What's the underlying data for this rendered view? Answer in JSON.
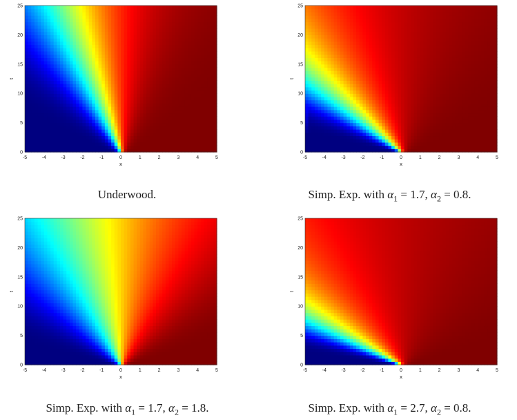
{
  "chart_data": [
    {
      "type": "heatmap",
      "caption": "Underwood.",
      "xlabel": "x",
      "ylabel": "t",
      "xlim": [
        -5,
        5
      ],
      "ylim": [
        0,
        25
      ],
      "xticks": [
        "-5",
        "-4",
        "-3",
        "-2",
        "-1",
        "0",
        "1",
        "2",
        "3",
        "4",
        "5"
      ],
      "yticks": [
        "0",
        "5",
        "10",
        "15",
        "20",
        "25"
      ],
      "colormap": "jet",
      "front": {
        "origin_x": 0,
        "slope_dx_per_t": -0.12,
        "spread_per_t": 0.07,
        "boundary_layer": 0
      }
    },
    {
      "type": "heatmap",
      "caption_parts": [
        "Simp. Exp. with ",
        "α",
        "1",
        " = 1.7, ",
        "α",
        "2",
        " = 0.8."
      ],
      "xlabel": "x",
      "ylabel": "t",
      "xlim": [
        -5,
        5
      ],
      "ylim": [
        0,
        25
      ],
      "xticks": [
        "-5",
        "-4",
        "-3",
        "-2",
        "-1",
        "0",
        "1",
        "2",
        "3",
        "4",
        "5"
      ],
      "yticks": [
        "0",
        "5",
        "10",
        "15",
        "20",
        "25"
      ],
      "colormap": "jet",
      "front": {
        "origin_x": 0,
        "slope_dx_per_t": -0.35,
        "spread_per_t": 0.13,
        "boundary_layer": 1
      }
    },
    {
      "type": "heatmap",
      "caption_parts": [
        "Simp. Exp. with ",
        "α",
        "1",
        " = 1.7, ",
        "α",
        "2",
        " = 1.8."
      ],
      "xlabel": "x",
      "ylabel": "t",
      "xlim": [
        -5,
        5
      ],
      "ylim": [
        0,
        25
      ],
      "xticks": [
        "-5",
        "-4",
        "-3",
        "-2",
        "-1",
        "0",
        "1",
        "2",
        "3",
        "4",
        "5"
      ],
      "yticks": [
        "0",
        "5",
        "10",
        "15",
        "20",
        "25"
      ],
      "colormap": "jet",
      "front": {
        "origin_x": 0,
        "slope_dx_per_t": -0.1,
        "spread_per_t": 0.14,
        "boundary_layer": 0
      }
    },
    {
      "type": "heatmap",
      "caption_parts": [
        "Simp. Exp. with ",
        "α",
        "1",
        " = 2.7, ",
        "α",
        "2",
        " = 0.8."
      ],
      "xlabel": "x",
      "ylabel": "t",
      "xlim": [
        -5,
        5
      ],
      "ylim": [
        0,
        25
      ],
      "xticks": [
        "-5",
        "-4",
        "-3",
        "-2",
        "-1",
        "0",
        "1",
        "2",
        "3",
        "4",
        "5"
      ],
      "yticks": [
        "0",
        "5",
        "10",
        "15",
        "20",
        "25"
      ],
      "colormap": "jet",
      "front": {
        "origin_x": 0,
        "slope_dx_per_t": -0.55,
        "spread_per_t": 0.2,
        "boundary_layer": 1
      }
    }
  ]
}
